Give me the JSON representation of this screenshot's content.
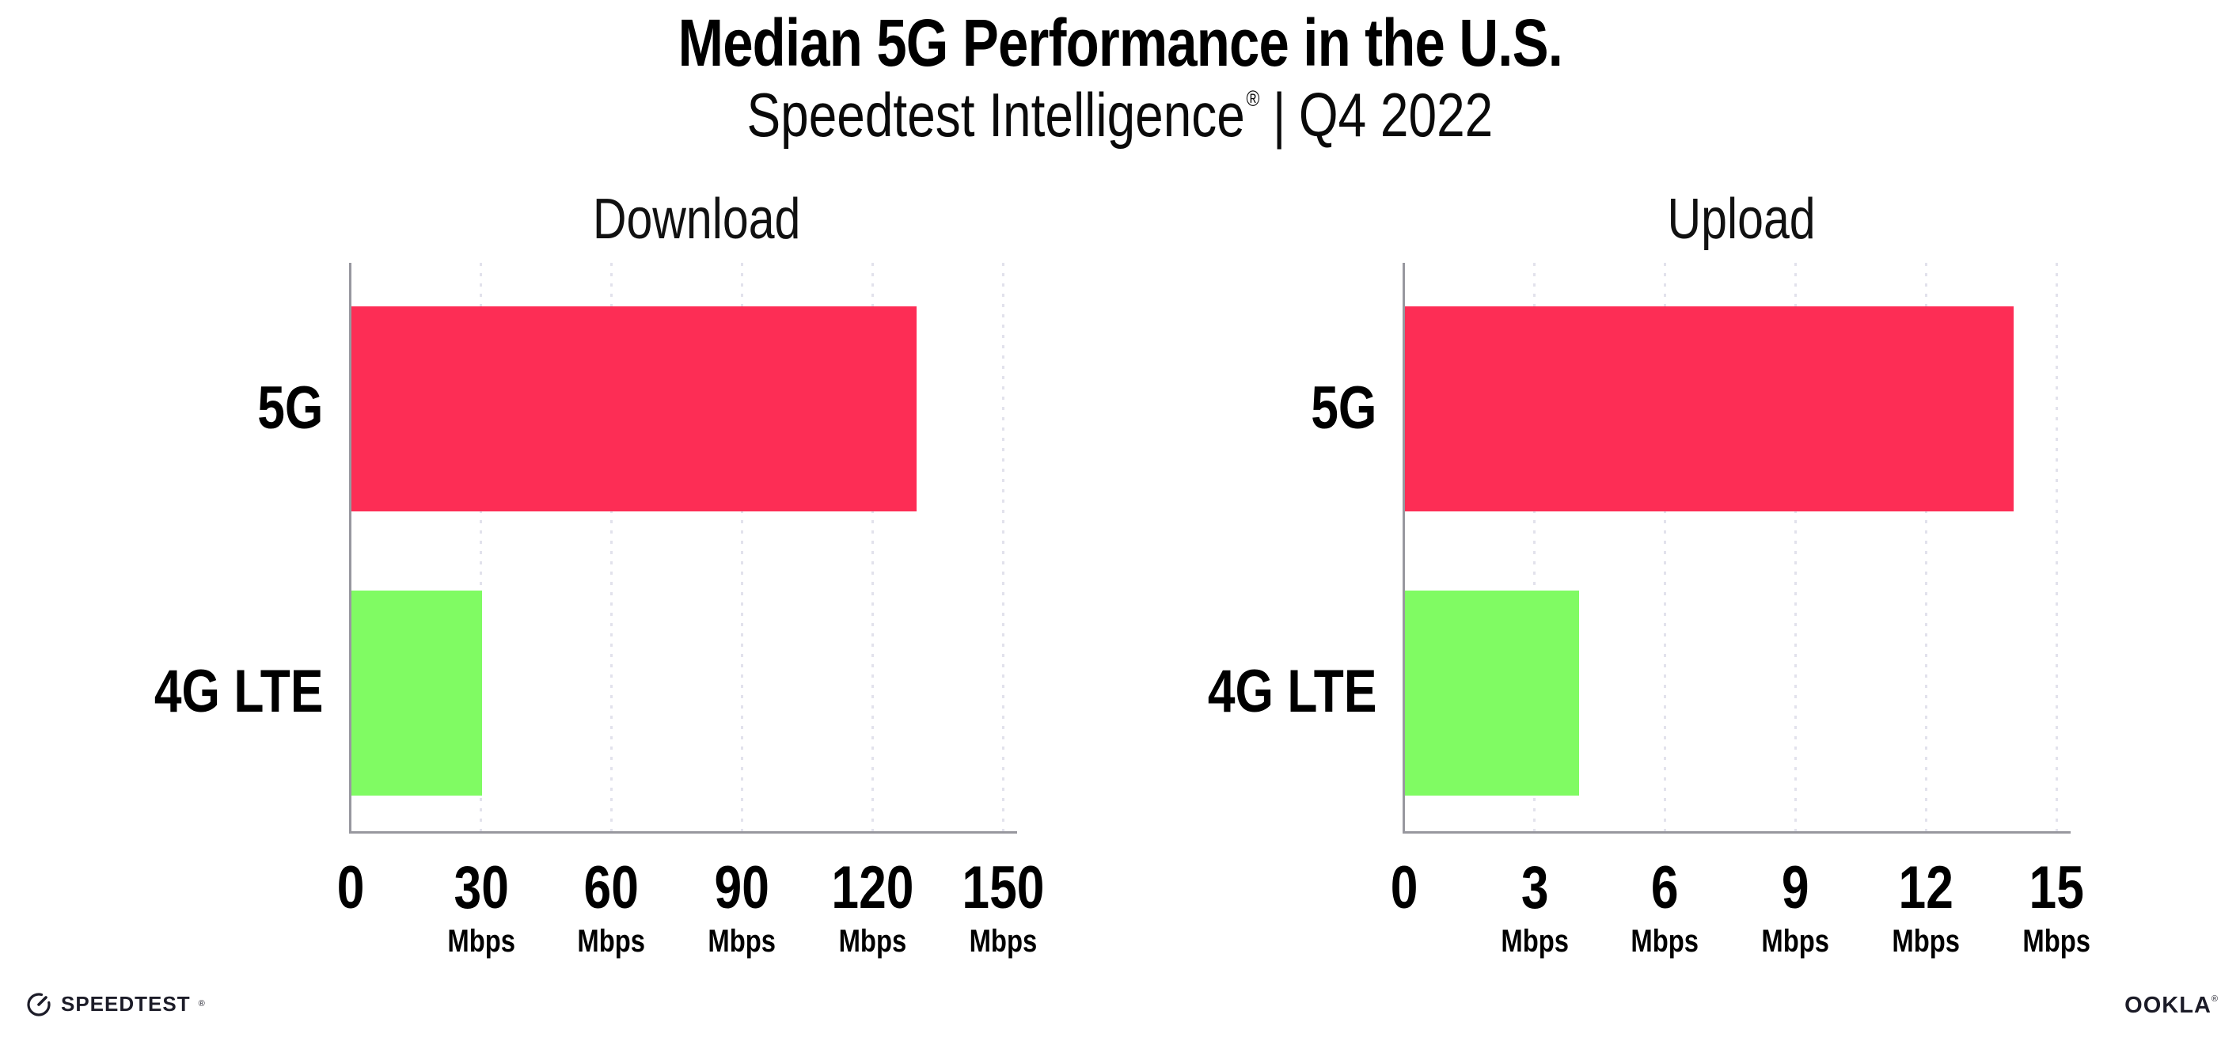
{
  "header": {
    "title": "Median 5G Performance in the U.S.",
    "subtitle": {
      "brand": "Speedtest Intelligence",
      "reg": "®",
      "separator": "|",
      "period": "Q4 2022"
    }
  },
  "chart_data": [
    {
      "type": "bar",
      "orientation": "horizontal",
      "title": "Download",
      "categories": [
        "5G",
        "4G LTE"
      ],
      "values": [
        130,
        30
      ],
      "unit": "Mbps",
      "xlim": [
        0,
        150
      ],
      "xticks": [
        0,
        30,
        60,
        90,
        120,
        150
      ],
      "xtick_labels": [
        "0",
        "30",
        "60",
        "90",
        "120",
        "150"
      ],
      "xtick_units": [
        "",
        "Mbps",
        "Mbps",
        "Mbps",
        "Mbps",
        "Mbps"
      ],
      "bar_colors": [
        "#fd2d55",
        "#80fb63"
      ],
      "grid": "vertical-dotted",
      "legend": "none"
    },
    {
      "type": "bar",
      "orientation": "horizontal",
      "title": "Upload",
      "categories": [
        "5G",
        "4G LTE"
      ],
      "values": [
        14,
        4
      ],
      "unit": "Mbps",
      "xlim": [
        0,
        15
      ],
      "xticks": [
        0,
        3,
        6,
        9,
        12,
        15
      ],
      "xtick_labels": [
        "0",
        "3",
        "6",
        "9",
        "12",
        "15"
      ],
      "xtick_units": [
        "",
        "Mbps",
        "Mbps",
        "Mbps",
        "Mbps",
        "Mbps"
      ],
      "bar_colors": [
        "#fd2d55",
        "#80fb63"
      ],
      "grid": "vertical-dotted",
      "legend": "none"
    }
  ],
  "footer": {
    "speedtest": {
      "icon": "speedtest-gauge-icon",
      "label": "SPEEDTEST",
      "mark": "®"
    },
    "ookla": {
      "label": "OOKLA",
      "mark": "®"
    }
  },
  "colors": {
    "bar_5g": "#fd2d55",
    "bar_4g_lte": "#80fb63",
    "axis": "#98989f",
    "gridline": "#e2e2ec",
    "text": "#000000",
    "background": "#ffffff"
  }
}
